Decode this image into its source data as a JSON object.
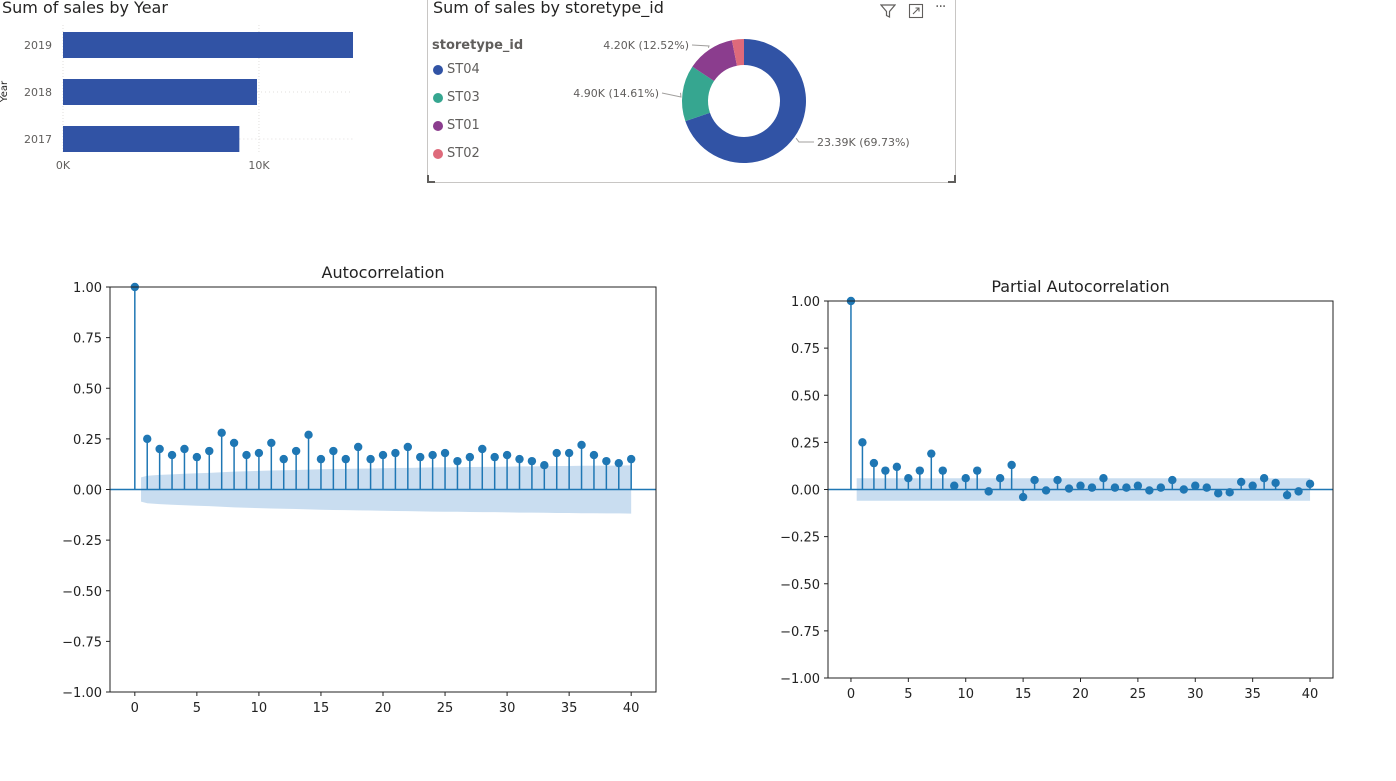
{
  "bar_visual": {
    "title": "Sum of sales by Year",
    "y_axis_label": "Year",
    "x_ticks": [
      "0K",
      "10K"
    ]
  },
  "donut_visual": {
    "title": "Sum of sales by storetype_id",
    "legend_title": "storetype_id",
    "toolbar": {
      "filter_icon": "filter-icon",
      "focus_icon": "focus-mode-icon",
      "more_icon": "more-options-icon",
      "more_label": "···"
    }
  },
  "acf_plot": {
    "title": "Autocorrelation"
  },
  "pacf_plot": {
    "title": "Partial Autocorrelation"
  },
  "colors": {
    "bar": "#3153a5",
    "st04": "#3153a5",
    "st03": "#36a690",
    "st01": "#8b3d8e",
    "st02": "#de6a7b",
    "stem": "#1f77b4",
    "band": "#c6dbef"
  },
  "chart_data": [
    {
      "type": "bar",
      "orientation": "horizontal",
      "title": "Sum of sales by Year",
      "ylabel": "Year",
      "categories": [
        "2019",
        "2018",
        "2017"
      ],
      "values": [
        14800,
        9900,
        9000
      ],
      "xlim": [
        0,
        14800
      ]
    },
    {
      "type": "pie",
      "donut": true,
      "title": "Sum of sales by storetype_id",
      "legend_title": "storetype_id",
      "legend_position": "left",
      "categories": [
        "ST04",
        "ST03",
        "ST01",
        "ST02"
      ],
      "values": [
        23390,
        4900,
        4200,
        1050
      ],
      "data_labels": [
        "23.39K (69.73%)",
        "4.90K (14.61%)",
        "4.20K (12.52%)",
        ""
      ]
    },
    {
      "type": "scatter",
      "style": "stem",
      "title": "Autocorrelation",
      "ylim": [
        -1.0,
        1.0
      ],
      "xlim": [
        -2,
        42
      ],
      "x_ticks": [
        0,
        5,
        10,
        15,
        20,
        25,
        30,
        35,
        40
      ],
      "y_ticks": [
        "1.00",
        "0.75",
        "0.50",
        "0.25",
        "0.00",
        "−0.25",
        "−0.50",
        "−0.75",
        "−1.00"
      ],
      "x": [
        0,
        1,
        2,
        3,
        4,
        5,
        6,
        7,
        8,
        9,
        10,
        11,
        12,
        13,
        14,
        15,
        16,
        17,
        18,
        19,
        20,
        21,
        22,
        23,
        24,
        25,
        26,
        27,
        28,
        29,
        30,
        31,
        32,
        33,
        34,
        35,
        36,
        37,
        38,
        39,
        40
      ],
      "values": [
        1.0,
        0.25,
        0.2,
        0.17,
        0.2,
        0.16,
        0.19,
        0.28,
        0.23,
        0.17,
        0.18,
        0.23,
        0.15,
        0.19,
        0.27,
        0.15,
        0.19,
        0.15,
        0.21,
        0.15,
        0.17,
        0.18,
        0.21,
        0.16,
        0.17,
        0.18,
        0.14,
        0.16,
        0.2,
        0.16,
        0.17,
        0.15,
        0.14,
        0.12,
        0.18,
        0.18,
        0.22,
        0.17,
        0.14,
        0.13,
        0.15
      ],
      "confidence": [
        0.06,
        0.068,
        0.072,
        0.075,
        0.078,
        0.08,
        0.082,
        0.085,
        0.088,
        0.09,
        0.092,
        0.094,
        0.095,
        0.096,
        0.098,
        0.1,
        0.101,
        0.102,
        0.103,
        0.104,
        0.105,
        0.106,
        0.107,
        0.108,
        0.109,
        0.11,
        0.11,
        0.111,
        0.112,
        0.112,
        0.113,
        0.114,
        0.114,
        0.115,
        0.116,
        0.116,
        0.117,
        0.117,
        0.118,
        0.118,
        0.119
      ]
    },
    {
      "type": "scatter",
      "style": "stem",
      "title": "Partial Autocorrelation",
      "ylim": [
        -1.0,
        1.0
      ],
      "xlim": [
        -2,
        42
      ],
      "x_ticks": [
        0,
        5,
        10,
        15,
        20,
        25,
        30,
        35,
        40
      ],
      "y_ticks": [
        "1.00",
        "0.75",
        "0.50",
        "0.25",
        "0.00",
        "−0.25",
        "−0.50",
        "−0.75",
        "−1.00"
      ],
      "x": [
        0,
        1,
        2,
        3,
        4,
        5,
        6,
        7,
        8,
        9,
        10,
        11,
        12,
        13,
        14,
        15,
        16,
        17,
        18,
        19,
        20,
        21,
        22,
        23,
        24,
        25,
        26,
        27,
        28,
        29,
        30,
        31,
        32,
        33,
        34,
        35,
        36,
        37,
        38,
        39,
        40
      ],
      "values": [
        1.0,
        0.25,
        0.14,
        0.1,
        0.12,
        0.06,
        0.1,
        0.19,
        0.1,
        0.02,
        0.06,
        0.1,
        -0.01,
        0.06,
        0.13,
        -0.04,
        0.05,
        -0.005,
        0.05,
        0.005,
        0.02,
        0.01,
        0.06,
        0.01,
        0.01,
        0.02,
        -0.005,
        0.01,
        0.05,
        0.0,
        0.02,
        0.01,
        -0.02,
        -0.015,
        0.04,
        0.02,
        0.06,
        0.035,
        -0.03,
        -0.01,
        0.03
      ],
      "confidence": [
        0.06
      ]
    }
  ]
}
